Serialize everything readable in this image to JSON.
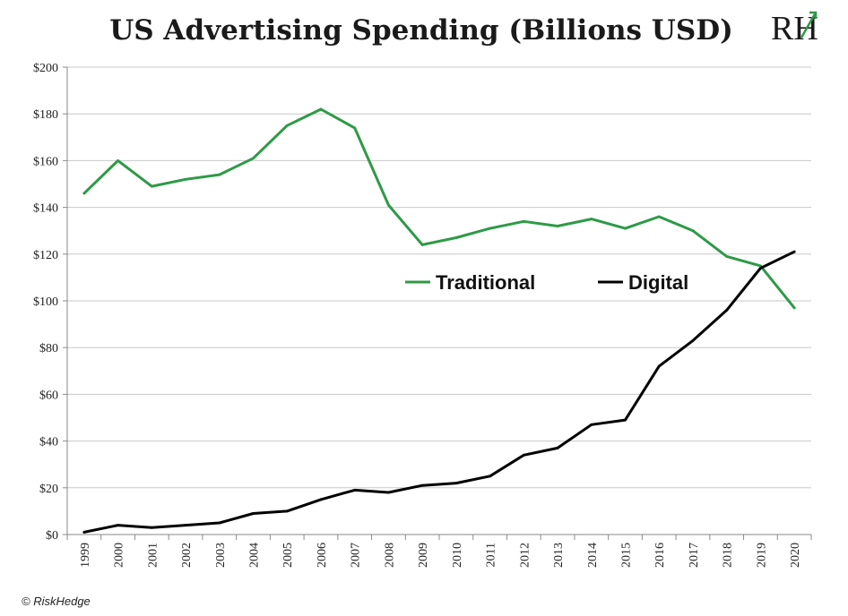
{
  "logo": {
    "text": "RH"
  },
  "credit": "© RiskHedge",
  "colors": {
    "traditional": "#2e9a47",
    "digital": "#000000",
    "grid": "#c8c8c8",
    "axis": "#8a8a8a"
  },
  "chart_data": {
    "type": "line",
    "title": "US Advertising Spending (Billions USD)",
    "xlabel": "",
    "ylabel": "",
    "x": [
      "1999",
      "2000",
      "2001",
      "2002",
      "2003",
      "2004",
      "2005",
      "2006",
      "2007",
      "2008",
      "2009",
      "2010",
      "2011",
      "2012",
      "2013",
      "2014",
      "2015",
      "2016",
      "2017",
      "2018",
      "2019",
      "2020"
    ],
    "ylim": [
      0,
      200
    ],
    "yticks": [
      0,
      20,
      40,
      60,
      80,
      100,
      120,
      140,
      160,
      180,
      200
    ],
    "ytick_labels": [
      "$0",
      "$20",
      "$40",
      "$60",
      "$80",
      "$100",
      "$120",
      "$140",
      "$160",
      "$180",
      "$200"
    ],
    "grid": "horizontal",
    "legend": "center-right",
    "series": [
      {
        "name": "Traditional",
        "color": "#2e9a47",
        "values": [
          146,
          160,
          149,
          152,
          154,
          161,
          175,
          182,
          174,
          141,
          124,
          127,
          131,
          134,
          132,
          135,
          131,
          136,
          130,
          119,
          115,
          97
        ]
      },
      {
        "name": "Digital",
        "color": "#000000",
        "values": [
          1,
          4,
          3,
          4,
          5,
          9,
          10,
          15,
          19,
          18,
          21,
          22,
          25,
          34,
          37,
          47,
          49,
          72,
          83,
          96,
          114,
          121
        ]
      }
    ]
  }
}
